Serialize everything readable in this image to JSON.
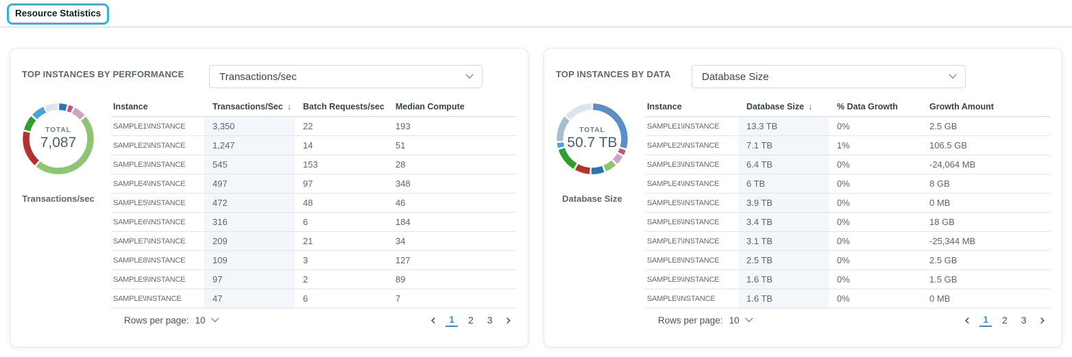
{
  "page": {
    "title": "Resource Statistics"
  },
  "panels": [
    {
      "title": "TOP INSTANCES BY PERFORMANCE",
      "dropdown_value": "Transactions/sec",
      "dropdown_icon": "chevron-down-icon",
      "donut": {
        "total_label": "TOTAL",
        "total_value": "7,087",
        "caption": "Transactions/sec",
        "segments": [
          {
            "value": 316,
            "color": "#2e74b5"
          },
          {
            "value": 209,
            "color": "#c2557e"
          },
          {
            "value": 451,
            "color": "#cba6c3"
          },
          {
            "value": 3350,
            "color": "#8dc573"
          },
          {
            "value": 1247,
            "color": "#b23230"
          },
          {
            "value": 545,
            "color": "#2f9e2f"
          },
          {
            "value": 497,
            "color": "#4aa3dc"
          },
          {
            "value": 472,
            "color": "#dde4ec"
          }
        ]
      },
      "table": {
        "columns": [
          "Instance",
          "Transactions/Sec",
          "Batch Requests/sec",
          "Median Compute"
        ],
        "sorted_column_index": 1,
        "sort_icon": "arrow-down-icon",
        "rows": [
          [
            "SAMPLE1\\INSTANCE",
            "3,350",
            "22",
            "193"
          ],
          [
            "SAMPLE2\\INSTANCE",
            "1,247",
            "14",
            "51"
          ],
          [
            "SAMPLE3\\INSTANCE",
            "545",
            "153",
            "28"
          ],
          [
            "SAMPLE4\\INSTANCE",
            "497",
            "97",
            "348"
          ],
          [
            "SAMPLE5\\INSTANCE",
            "472",
            "48",
            "46"
          ],
          [
            "SAMPLE6\\INSTANCE",
            "316",
            "6",
            "184"
          ],
          [
            "SAMPLE7\\INSTANCE",
            "209",
            "21",
            "34"
          ],
          [
            "SAMPLE8\\INSTANCE",
            "109",
            "3",
            "127"
          ],
          [
            "SAMPLE9\\INSTANCE",
            "97",
            "2",
            "89"
          ],
          [
            "SAMPLE\\INSTANCE",
            "47",
            "6",
            "7"
          ]
        ]
      },
      "footer": {
        "rows_per_page_label": "Rows per page:",
        "rows_per_page_value": "10",
        "pages": [
          "1",
          "2",
          "3"
        ],
        "active_page": "1",
        "prev_icon": "‹",
        "next_icon": "›"
      }
    },
    {
      "title": "TOP INSTANCES BY DATA",
      "dropdown_value": "Database Size",
      "dropdown_icon": "chevron-down-icon",
      "donut": {
        "total_label": "TOTAL",
        "total_value": "50.7 TB",
        "caption": "Database Size",
        "segments": [
          {
            "value": 15.1,
            "color": "#5b8fc3"
          },
          {
            "value": 1.6,
            "color": "#c2557e"
          },
          {
            "value": 2.5,
            "color": "#cba6c3"
          },
          {
            "value": 3.1,
            "color": "#8dc573"
          },
          {
            "value": 3.4,
            "color": "#2e74b5"
          },
          {
            "value": 3.9,
            "color": "#b23230"
          },
          {
            "value": 6,
            "color": "#2f9e2f"
          },
          {
            "value": 1.6,
            "color": "#4aa3dc"
          },
          {
            "value": 6.4,
            "color": "#a9bdcf"
          },
          {
            "value": 7.1,
            "color": "#dde4ec"
          }
        ]
      },
      "table": {
        "columns": [
          "Instance",
          "Database Size",
          "% Data Growth",
          "Growth Amount"
        ],
        "sorted_column_index": 1,
        "sort_icon": "arrow-down-icon",
        "rows": [
          [
            "SAMPLE1\\INSTANCE",
            "13.3 TB",
            "0%",
            "2.5 GB"
          ],
          [
            "SAMPLE2\\INSTANCE",
            "7.1 TB",
            "1%",
            "106.5 GB"
          ],
          [
            "SAMPLE3\\INSTANCE",
            "6.4 TB",
            "0%",
            "-24,064 MB"
          ],
          [
            "SAMPLE4\\INSTANCE",
            "6 TB",
            "0%",
            "8 GB"
          ],
          [
            "SAMPLE5\\INSTANCE",
            "3.9 TB",
            "0%",
            "0 MB"
          ],
          [
            "SAMPLE6\\INSTANCE",
            "3.4 TB",
            "0%",
            "18 GB"
          ],
          [
            "SAMPLE7\\INSTANCE",
            "3.1 TB",
            "0%",
            "-25,344 MB"
          ],
          [
            "SAMPLE8\\INSTANCE",
            "2.5 TB",
            "0%",
            "2.5 GB"
          ],
          [
            "SAMPLE9\\INSTANCE",
            "1.6 TB",
            "0%",
            "1.5 GB"
          ],
          [
            "SAMPLE\\INSTANCE",
            "1.6 TB",
            "0%",
            "0 MB"
          ]
        ]
      },
      "footer": {
        "rows_per_page_label": "Rows per page:",
        "rows_per_page_value": "10",
        "pages": [
          "1",
          "2",
          "3"
        ],
        "active_page": "1",
        "prev_icon": "‹",
        "next_icon": "›"
      }
    }
  ],
  "chart_data": [
    {
      "type": "pie",
      "title": "Top instances by performance",
      "metric": "Transactions/sec",
      "total_label": "TOTAL",
      "total": 7087,
      "labels": [
        "SAMPLE1\\INSTANCE",
        "SAMPLE2\\INSTANCE",
        "SAMPLE3\\INSTANCE",
        "SAMPLE4\\INSTANCE",
        "SAMPLE5\\INSTANCE",
        "SAMPLE6\\INSTANCE",
        "SAMPLE7\\INSTANCE",
        "SAMPLE8\\INSTANCE",
        "SAMPLE9\\INSTANCE",
        "SAMPLE\\INSTANCE"
      ],
      "values": [
        3350,
        1247,
        545,
        497,
        472,
        316,
        209,
        109,
        97,
        47
      ]
    },
    {
      "type": "pie",
      "title": "Top instances by data",
      "metric": "Database Size (TB)",
      "total_label": "TOTAL",
      "total": 50.7,
      "labels": [
        "SAMPLE1\\INSTANCE",
        "SAMPLE2\\INSTANCE",
        "SAMPLE3\\INSTANCE",
        "SAMPLE4\\INSTANCE",
        "SAMPLE5\\INSTANCE",
        "SAMPLE6\\INSTANCE",
        "SAMPLE7\\INSTANCE",
        "SAMPLE8\\INSTANCE",
        "SAMPLE9\\INSTANCE",
        "SAMPLE\\INSTANCE"
      ],
      "values": [
        13.3,
        7.1,
        6.4,
        6,
        3.9,
        3.4,
        3.1,
        2.5,
        1.6,
        1.6
      ]
    }
  ]
}
